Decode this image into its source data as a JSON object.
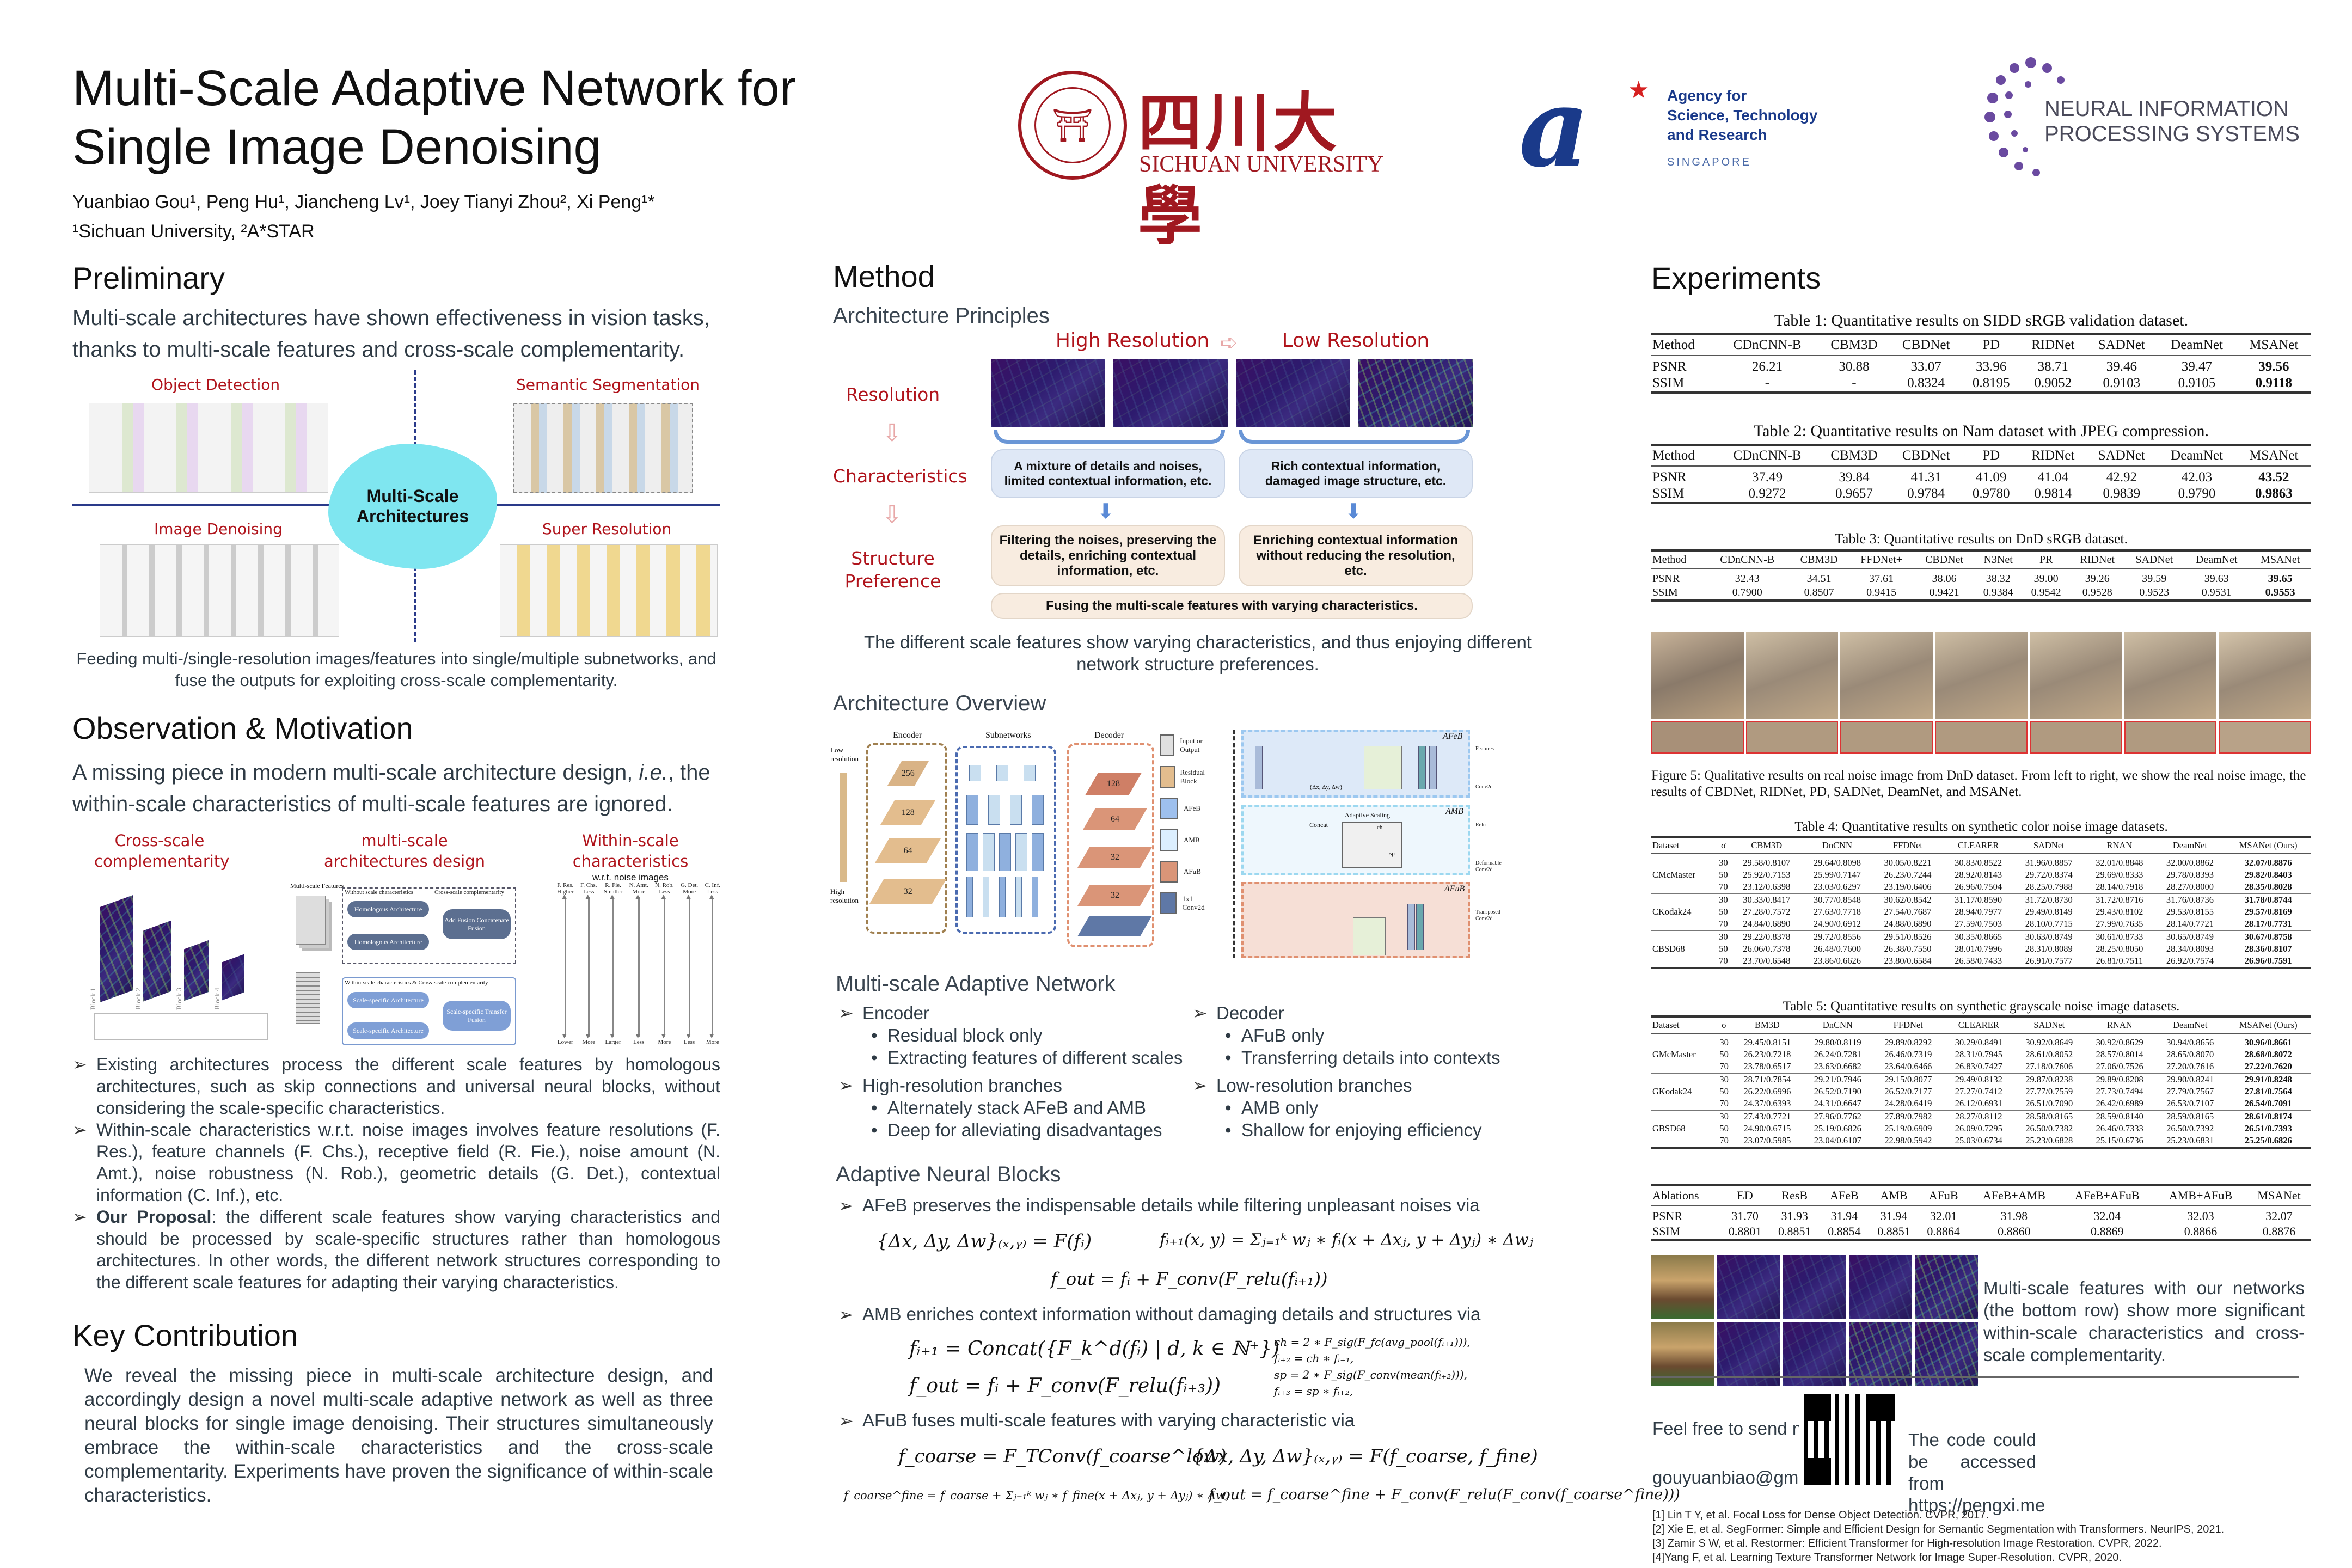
{
  "header": {
    "title_line1": "Multi-Scale Adaptive Network for",
    "title_line2": "Single Image Denoising",
    "authors": "Yuanbiao Gou¹, Peng Hu¹, Jiancheng Lv¹, Joey Tianyi Zhou², Xi Peng¹*",
    "affiliations": "¹Sichuan University, ²A*STAR",
    "logos": {
      "sichuan_cn": "四川大學",
      "sichuan_en": "SICHUAN UNIVERSITY",
      "sichuan_seal": "SICHUAN UNIVERSITY 1896",
      "astar_lines": [
        "Agency for",
        "Science, Technology",
        "and Research"
      ],
      "astar_country": "SINGAPORE",
      "neurips_lines": [
        "NEURAL INFORMATION",
        "PROCESSING SYSTEMS"
      ]
    },
    "colors": {
      "accent_red": "#b0141c",
      "astar_blue": "#1a3a8a",
      "neurips_purple": "#5a3a8a"
    }
  },
  "preliminary": {
    "heading": "Preliminary",
    "text": "Multi-scale architectures have shown effectiveness in vision tasks, thanks to multi-scale features and cross-scale complementarity.",
    "figure": {
      "object_detection": "Object Detection",
      "semantic_segmentation": "Semantic Segmentation",
      "image_denoising": "Image Denoising",
      "super_resolution": "Super Resolution",
      "center": "Multi-Scale Architectures"
    },
    "caption": "Feeding multi-/single-resolution images/features into single/multiple subnetworks, and fuse the outputs for exploiting cross-scale complementarity."
  },
  "observation": {
    "heading": "Observation & Motivation",
    "text_pre": "A missing piece in modern multi-scale architecture design, ",
    "text_em": "i.e.",
    "text_post": ", the within-scale characteristics of multi-scale features are ignored.",
    "figure": {
      "title_cross": "Cross-scale complementarity",
      "title_multi": "multi-scale architectures design",
      "title_within": "Within-scale characteristics",
      "within_sub": "w.r.t. noise images",
      "blocks": [
        "Block 1",
        "Block 2",
        "Block 3",
        "Block 4"
      ],
      "multi_features": "Multi-scale Features",
      "without": "Without scale characteristics",
      "cross": "Cross-scale complementarity",
      "homologous": "Homologous Architecture",
      "add_fusion": "Add Fusion Concatenate Fusion",
      "within_cross": "Within-scale characteristics & Cross-scale complementarity",
      "scale_specific": "Scale-specific Architecture",
      "transfer_fusion": "Scale-specific Transfer Fusion",
      "axes": [
        {
          "name": "F. Res.",
          "top": "Higher",
          "bottom": "Lower"
        },
        {
          "name": "F. Chs.",
          "top": "Less",
          "bottom": "More"
        },
        {
          "name": "R. Fie.",
          "top": "Smaller",
          "bottom": "Larger"
        },
        {
          "name": "N. Amt.",
          "top": "More",
          "bottom": "Less"
        },
        {
          "name": "N. Rob.",
          "top": "Less",
          "bottom": "More"
        },
        {
          "name": "G. Det.",
          "top": "More",
          "bottom": "Less"
        },
        {
          "name": "C. Inf.",
          "top": "Less",
          "bottom": "More"
        }
      ]
    },
    "bullets": [
      {
        "text": "Existing architectures process the different scale features by homologous architectures, such as skip connections and universal neural blocks, without considering the scale-specific characteristics."
      },
      {
        "text": "Within-scale characteristics w.r.t. noise images involves feature resolutions (F. Res.), feature channels (F. Chs.), receptive field (R. Fie.), noise amount (N. Amt.), noise robustness (N. Rob.), geometric details (G. Det.), contextual information (C. Inf.), etc."
      },
      {
        "bold": "Our Proposal",
        "text": ": the different scale features show varying characteristics and should be processed by scale-specific structures rather than homologous architectures. In other words, the different network structures corresponding to the different scale features for adapting their varying characteristics."
      }
    ]
  },
  "key_contribution": {
    "heading": "Key Contribution",
    "text": "We reveal the missing piece in multi-scale architecture design, and accordingly design a novel multi-scale adaptive network as well as three neural blocks for single image denoising. Their structures simultaneously embrace the within-scale characteristics and the cross-scale complementarity. Experiments have proven the significance of within-scale characteristics."
  },
  "method": {
    "heading": "Method",
    "principles": {
      "heading": "Architecture Principles",
      "high": "High Resolution",
      "low": "Low Resolution",
      "row_resolution": "Resolution",
      "row_characteristics": "Characteristics",
      "row_structure": "Structure Preference",
      "char_high": "A mixture of details and noises, limited contextual information, etc.",
      "char_low": "Rich contextual information, damaged image structure, etc.",
      "pref_high": "Filtering the noises, preserving the details, enriching contextual information, etc.",
      "pref_low": "Enriching contextual information without reducing the resolution, etc.",
      "fuse": "Fusing the multi-scale features with varying characteristics.",
      "caption": "The different scale features show varying characteristics, and thus enjoying different network structure preferences."
    },
    "overview": {
      "heading": "Architecture Overview",
      "encoder": "Encoder",
      "subnetworks": "Subnetworks",
      "decoder": "Decoder",
      "low_res": "Low resolution",
      "high_res": "High resolution",
      "enc_channels": [
        "256",
        "128",
        "64",
        "32"
      ],
      "dec_channels": [
        "128",
        "64",
        "32",
        "32"
      ],
      "legend": [
        "Input or Output",
        "Residual Block",
        "AFeB",
        "AMB",
        "AFuB",
        "1x1 Conv2d"
      ],
      "afeb": "AFeB",
      "amb": "AMB",
      "afub": "AFuB",
      "adaptive_scaling": "Adaptive Scaling",
      "concat": "Concat",
      "ch": "ch",
      "sp": "sp",
      "offsets": "{Δx, Δy, Δw}",
      "legend2": [
        "Features",
        "Conv2d",
        "Relu",
        "Deformable Conv2d",
        "Transposed Conv2d"
      ]
    },
    "msanet": {
      "heading": "Multi-scale Adaptive Network",
      "groups": [
        {
          "title": "Encoder",
          "items": [
            "Residual block only",
            "Extracting features of different scales"
          ]
        },
        {
          "title": "Decoder",
          "items": [
            "AFuB only",
            "Transferring details into contexts"
          ]
        },
        {
          "title": "High-resolution branches",
          "items": [
            "Alternately stack AFeB and AMB",
            "Deep for alleviating disadvantages"
          ]
        },
        {
          "title": "Low-resolution branches",
          "items": [
            "AMB only",
            "Shallow for enjoying efficiency"
          ]
        }
      ]
    },
    "blocks": {
      "heading": "Adaptive Neural Blocks",
      "afeb_text": "AFeB preserves the indispensable details while filtering unpleasant noises via",
      "afeb_eq1": "{Δx, Δy, Δw}₍ₓ,ᵧ₎ = F(fᵢ)",
      "afeb_eq2": "fᵢ₊₁(x, y) = Σⱼ₌₁ᵏ wⱼ ∗ fᵢ(x + Δxⱼ, y + Δyⱼ) ∗ Δwⱼ",
      "afeb_eq3": "f_out = fᵢ + F_conv(F_relu(fᵢ₊₁))",
      "amb_text": "AMB enriches context information without damaging details and structures via",
      "amb_eq1": "fᵢ₊₁ = Concat({F_k^d(fᵢ) | d, k ∈ ℕ⁺})",
      "amb_eq2": "f_out = fᵢ + F_conv(F_relu(fᵢ₊₃))",
      "amb_side": [
        "ch = 2 ∗ F_sig(F_fc(avg_pool(fᵢ₊₁))),",
        "fᵢ₊₂ = ch ∗ fᵢ₊₁,",
        "sp = 2 ∗ F_sig(F_conv(mean(fᵢ₊₂))),",
        "fᵢ₊₃ = sp ∗ fᵢ₊₂,"
      ],
      "afub_text": "AFuB fuses multi-scale features with varying characteristic via",
      "afub_eq1": "f_coarse = F_TConv(f_coarse^low)",
      "afub_eq2": "{Δx, Δy, Δw}₍ₓ,ᵧ₎ = F(f_coarse, f_fine)",
      "afub_eq3": "f_coarse^fine = f_coarse + Σⱼ₌₁ᵏ wⱼ ∗ f_fine(x + Δxⱼ, y + Δyⱼ) ∗ Δwⱼ",
      "afub_eq4": "f_out = f_coarse^fine + F_conv(F_relu(F_conv(f_coarse^fine)))"
    }
  },
  "experiments": {
    "heading": "Experiments",
    "table1": {
      "caption": "Table 1: Quantitative results on SIDD sRGB validation dataset.",
      "header": [
        "Method",
        "CDnCNN-B",
        "CBM3D",
        "CBDNet",
        "PD",
        "RIDNet",
        "SADNet",
        "DeamNet",
        "MSANet"
      ],
      "rows": [
        [
          "PSNR",
          "26.21",
          "30.88",
          "33.07",
          "33.96",
          "38.71",
          "39.46",
          "39.47",
          "39.56"
        ],
        [
          "SSIM",
          "-",
          "-",
          "0.8324",
          "0.8195",
          "0.9052",
          "0.9103",
          "0.9105",
          "0.9118"
        ]
      ]
    },
    "table2": {
      "caption": "Table 2: Quantitative results on Nam dataset with JPEG compression.",
      "header": [
        "Method",
        "CDnCNN-B",
        "CBM3D",
        "CBDNet",
        "PD",
        "RIDNet",
        "SADNet",
        "DeamNet",
        "MSANet"
      ],
      "rows": [
        [
          "PSNR",
          "37.49",
          "39.84",
          "41.31",
          "41.09",
          "41.04",
          "42.92",
          "42.03",
          "43.52"
        ],
        [
          "SSIM",
          "0.9272",
          "0.9657",
          "0.9784",
          "0.9780",
          "0.9814",
          "0.9839",
          "0.9790",
          "0.9863"
        ]
      ]
    },
    "table3": {
      "caption": "Table 3: Quantitative results on DnD sRGB dataset.",
      "header": [
        "Method",
        "CDnCNN-B",
        "CBM3D",
        "FFDNet+",
        "CBDNet",
        "N3Net",
        "PR",
        "RIDNet",
        "SADNet",
        "DeamNet",
        "MSANet"
      ],
      "rows": [
        [
          "PSNR",
          "32.43",
          "34.51",
          "37.61",
          "38.06",
          "38.32",
          "39.00",
          "39.26",
          "39.59",
          "39.63",
          "39.65"
        ],
        [
          "SSIM",
          "0.7900",
          "0.8507",
          "0.9415",
          "0.9421",
          "0.9384",
          "0.9542",
          "0.9528",
          "0.9523",
          "0.9531",
          "0.9553"
        ]
      ]
    },
    "figure5_caption": "Figure 5: Qualitative results on real noise image from DnD dataset. From left to right, we show the real noise image, the results of CBDNet, RIDNet, PD, SADNet, DeamNet, and MSANet.",
    "table4": {
      "caption": "Table 4: Quantitative results on synthetic color noise image datasets.",
      "header": [
        "Dataset",
        "σ",
        "CBM3D",
        "DnCNN",
        "FFDNet",
        "CLEARER",
        "SADNet",
        "RNAN",
        "DeamNet",
        "MSANet (Ours)"
      ],
      "rows": [
        [
          "",
          "30",
          "29.58/0.8107",
          "29.64/0.8098",
          "30.05/0.8221",
          "30.83/0.8522",
          "31.96/0.8857",
          "32.01/0.8848",
          "32.00/0.8862",
          "32.07/0.8876"
        ],
        [
          "CMcMaster",
          "50",
          "25.92/0.7153",
          "25.99/0.7147",
          "26.23/0.7244",
          "28.92/0.8143",
          "29.72/0.8374",
          "29.69/0.8333",
          "29.78/0.8393",
          "29.82/0.8403"
        ],
        [
          "",
          "70",
          "23.12/0.6398",
          "23.03/0.6297",
          "23.19/0.6406",
          "26.96/0.7504",
          "28.25/0.7988",
          "28.14/0.7918",
          "28.27/0.8000",
          "28.35/0.8028"
        ],
        [
          "",
          "30",
          "30.33/0.8417",
          "30.77/0.8548",
          "30.62/0.8542",
          "31.17/0.8590",
          "31.72/0.8730",
          "31.72/0.8716",
          "31.76/0.8736",
          "31.78/0.8744"
        ],
        [
          "CKodak24",
          "50",
          "27.28/0.7572",
          "27.63/0.7718",
          "27.54/0.7687",
          "28.94/0.7977",
          "29.49/0.8149",
          "29.43/0.8102",
          "29.53/0.8155",
          "29.57/0.8169"
        ],
        [
          "",
          "70",
          "24.84/0.6890",
          "24.90/0.6912",
          "24.88/0.6890",
          "27.59/0.7503",
          "28.10/0.7715",
          "27.99/0.7635",
          "28.14/0.7721",
          "28.17/0.7731"
        ],
        [
          "",
          "30",
          "29.22/0.8378",
          "29.72/0.8556",
          "29.51/0.8526",
          "30.35/0.8665",
          "30.63/0.8749",
          "30.61/0.8733",
          "30.65/0.8749",
          "30.67/0.8758"
        ],
        [
          "CBSD68",
          "50",
          "26.06/0.7378",
          "26.48/0.7600",
          "26.38/0.7550",
          "28.01/0.7996",
          "28.31/0.8089",
          "28.25/0.8050",
          "28.34/0.8093",
          "28.36/0.8107"
        ],
        [
          "",
          "70",
          "23.70/0.6548",
          "23.86/0.6626",
          "23.80/0.6584",
          "26.58/0.7433",
          "26.91/0.7577",
          "26.81/0.7511",
          "26.92/0.7574",
          "26.96/0.7591"
        ]
      ]
    },
    "table5": {
      "caption": "Table 5: Quantitative results on synthetic grayscale noise image datasets.",
      "header": [
        "Dataset",
        "σ",
        "BM3D",
        "DnCNN",
        "FFDNet",
        "CLEARER",
        "SADNet",
        "RNAN",
        "DeamNet",
        "MSANet (Ours)"
      ],
      "rows": [
        [
          "",
          "30",
          "29.45/0.8151",
          "29.80/0.8119",
          "29.89/0.8292",
          "30.29/0.8491",
          "30.92/0.8649",
          "30.92/0.8629",
          "30.94/0.8656",
          "30.96/0.8661"
        ],
        [
          "GMcMaster",
          "50",
          "26.23/0.7218",
          "26.24/0.7281",
          "26.46/0.7319",
          "28.31/0.7945",
          "28.61/0.8052",
          "28.57/0.8014",
          "28.65/0.8070",
          "28.68/0.8072"
        ],
        [
          "",
          "70",
          "23.78/0.6517",
          "23.63/0.6682",
          "23.64/0.6466",
          "26.83/0.7427",
          "27.18/0.7606",
          "27.06/0.7526",
          "27.20/0.7616",
          "27.22/0.7620"
        ],
        [
          "",
          "30",
          "28.71/0.7854",
          "29.21/0.7946",
          "29.15/0.8077",
          "29.49/0.8132",
          "29.87/0.8238",
          "29.89/0.8208",
          "29.90/0.8241",
          "29.91/0.8248"
        ],
        [
          "GKodak24",
          "50",
          "26.22/0.6996",
          "26.52/0.7190",
          "26.52/0.7177",
          "27.27/0.7412",
          "27.77/0.7559",
          "27.73/0.7494",
          "27.79/0.7567",
          "27.81/0.7564"
        ],
        [
          "",
          "70",
          "24.37/0.6393",
          "24.31/0.6647",
          "24.28/0.6419",
          "26.12/0.6931",
          "26.51/0.7090",
          "26.42/0.6989",
          "26.53/0.7107",
          "26.54/0.7091"
        ],
        [
          "",
          "30",
          "27.43/0.7721",
          "27.96/0.7762",
          "27.89/0.7982",
          "28.27/0.8112",
          "28.58/0.8165",
          "28.59/0.8140",
          "28.59/0.8165",
          "28.61/0.8174"
        ],
        [
          "GBSD68",
          "50",
          "24.90/0.6715",
          "25.19/0.6826",
          "25.19/0.6909",
          "26.09/0.7295",
          "26.50/0.7382",
          "26.46/0.7333",
          "26.50/0.7392",
          "26.51/0.7393"
        ],
        [
          "",
          "70",
          "23.07/0.5985",
          "23.04/0.6107",
          "22.98/0.5942",
          "25.03/0.6734",
          "25.23/0.6828",
          "25.15/0.6736",
          "25.23/0.6831",
          "25.25/0.6826"
        ]
      ]
    },
    "ablation": {
      "header": [
        "Ablations",
        "ED",
        "ResB",
        "AFeB",
        "AMB",
        "AFuB",
        "AFeB+AMB",
        "AFeB+AFuB",
        "AMB+AFuB",
        "MSANet"
      ],
      "rows": [
        [
          "PSNR",
          "31.70",
          "31.93",
          "31.94",
          "31.94",
          "32.01",
          "31.98",
          "32.04",
          "32.03",
          "32.07"
        ],
        [
          "SSIM",
          "0.8801",
          "0.8851",
          "0.8854",
          "0.8851",
          "0.8864",
          "0.8860",
          "0.8869",
          "0.8866",
          "0.8876"
        ]
      ]
    },
    "features_caption": "Multi-scale features with our networks (the bottom row) show more significant within-scale characteristics and cross-scale complementarity."
  },
  "contact": {
    "email_prompt": "Feel free to send me an email!",
    "email": "gouyuanbiao@gmail.com",
    "code_text": "The code could be accessed from https://pengxi.me"
  },
  "references": [
    "[1] Lin T Y, et al. Focal Loss for Dense Object Detection. CVPR, 2017.",
    "[2] Xie E, et al. SegFormer: Simple and Efficient Design for Semantic Segmentation with Transformers. NeurIPS, 2021.",
    "[3] Zamir S W, et al. Restormer: Efficient Transformer for High-resolution Image Restoration. CVPR, 2022.",
    "[4]Yang F, et al. Learning Texture Transformer Network for Image Super-Resolution. CVPR, 2020."
  ]
}
